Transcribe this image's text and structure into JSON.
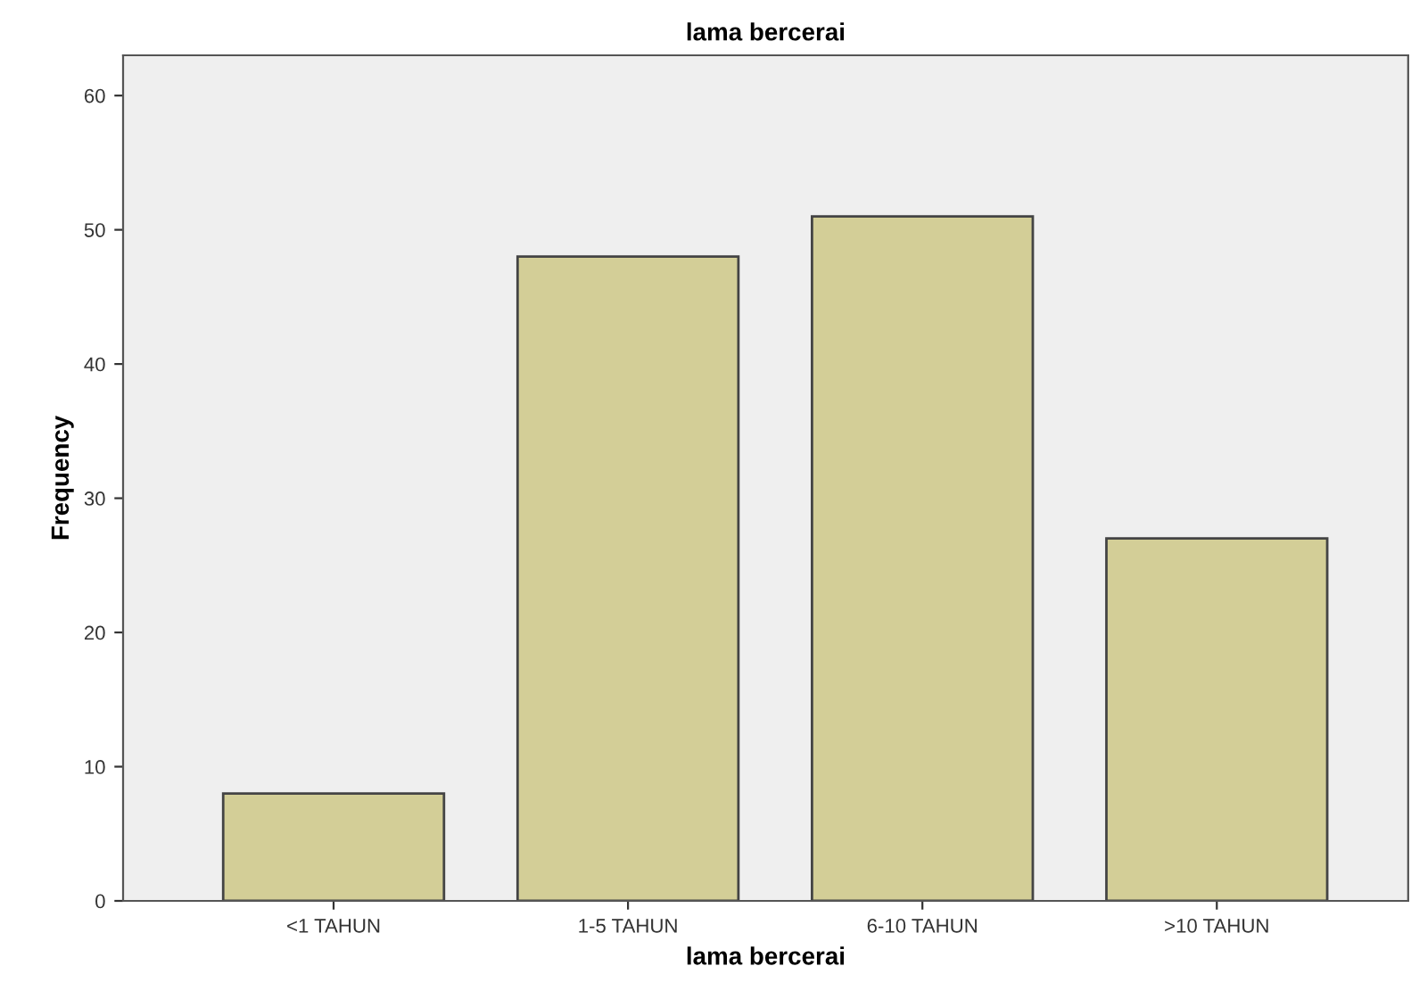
{
  "chart_data": {
    "type": "bar",
    "title": "lama bercerai",
    "xlabel": "lama bercerai",
    "ylabel": "Frequency",
    "categories": [
      "<1 TAHUN",
      "1-5 TAHUN",
      "6-10 TAHUN",
      ">10 TAHUN"
    ],
    "values": [
      8,
      48,
      51,
      27
    ],
    "color": "#d3ce97",
    "ylim": [
      0,
      63
    ],
    "yticks": [
      0,
      10,
      20,
      30,
      40,
      50,
      60
    ],
    "grid": false
  }
}
